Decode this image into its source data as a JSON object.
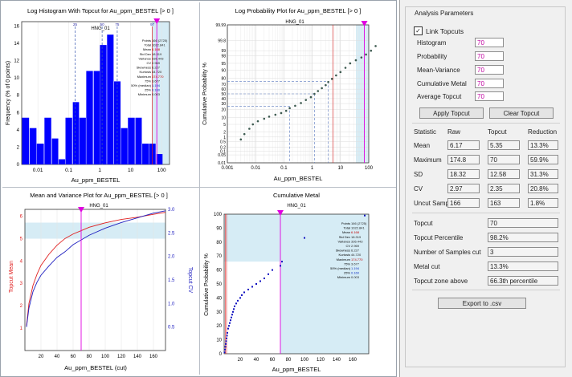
{
  "panels": {
    "hist": {
      "title": "Log Histogram With Topcut for Au_ppm_BESTEL [> 0 ]",
      "subtitle": "HNG_01",
      "xlabel": "Au_ppm_BESTEL",
      "ylabel": "Frequency (% of 0 points)",
      "yticks": [
        "0",
        "2",
        "4",
        "6",
        "8",
        "10",
        "12",
        "14",
        "16"
      ],
      "xticks": [
        "0.01",
        "0.1",
        "1",
        "10",
        "100"
      ],
      "pct_labels": [
        "25",
        "50",
        "75",
        "97"
      ],
      "stats": [
        {
          "k": "Points",
          "v": "166 (2725)"
        },
        {
          "k": "Total",
          "v": "1022.841"
        },
        {
          "k": "Mean",
          "v": "6.168"
        },
        {
          "k": "Std Dev",
          "v": "18.319"
        },
        {
          "k": "Variance",
          "v": "336.443"
        },
        {
          "k": "CV",
          "v": "2.969"
        },
        {
          "k": "Skewness",
          "v": "6.227"
        },
        {
          "k": "Kurtosis",
          "v": "44.720"
        },
        {
          "k": "Maximum",
          "v": "174.770"
        },
        {
          "k": "75%",
          "v": "3.677"
        },
        {
          "k": "50% (median)",
          "v": "1.194"
        },
        {
          "k": "25%",
          "v": "0.160"
        },
        {
          "k": "Minimum",
          "v": "0.003"
        }
      ]
    },
    "prob": {
      "title": "Log Probability Plot for Au_ppm_BESTEL [> 0 ]",
      "subtitle": "HNG_01",
      "xlabel": "Au_ppm_BESTEL",
      "ylabel": "Cumulative Probability %",
      "yticks": [
        "0.01",
        "0.05",
        "0.1",
        "0.2",
        "0.5",
        "1",
        "2",
        "5",
        "10",
        "20",
        "30",
        "40",
        "50",
        "60",
        "70",
        "80",
        "90",
        "95",
        "98",
        "99",
        "99.8",
        "99.99"
      ],
      "xticks": [
        "0.001",
        "0.01",
        "0.1",
        "1",
        "10",
        "100"
      ]
    },
    "mv": {
      "title": "Mean and Variance Plot for Au_ppm_BESTEL [> 0 ]",
      "subtitle": "HNG_01",
      "xlabel": "Au_ppm_BESTEL (cut)",
      "ylabel_left": "Topcut Mean",
      "ylabel_right": "Topcut CV",
      "yticks_left": [
        "1",
        "2",
        "3",
        "4",
        "5",
        "6"
      ],
      "yticks_right": [
        "0.5",
        "1.0",
        "1.5",
        "2.0",
        "2.5",
        "3.0"
      ],
      "xticks": [
        "20",
        "40",
        "60",
        "80",
        "100",
        "120",
        "140",
        "160"
      ]
    },
    "cum": {
      "title": "Cumulative Metal",
      "subtitle": "HNG_01",
      "xlabel": "Au_ppm_BESTEL",
      "ylabel": "Cumulative Probability %",
      "yticks": [
        "0",
        "10",
        "20",
        "30",
        "40",
        "50",
        "60",
        "70",
        "80",
        "90",
        "100"
      ],
      "xticks": [
        "20",
        "40",
        "60",
        "80",
        "100",
        "120",
        "140",
        "160"
      ]
    }
  },
  "colors": {
    "topcut": "#e000e0",
    "bars": "#0000ff",
    "red": "#e02020",
    "shade": "#d6ecf5"
  },
  "analysis": {
    "group_title": "Analysis Parameters",
    "link_topcuts": "Link Topcuts",
    "link_checked": "✓",
    "params": [
      {
        "label": "Histogram",
        "value": "70"
      },
      {
        "label": "Probability",
        "value": "70"
      },
      {
        "label": "Mean-Variance",
        "value": "70"
      },
      {
        "label": "Cumulative Metal",
        "value": "70"
      },
      {
        "label": "Average Topcut",
        "value": "70"
      }
    ],
    "apply_button": "Apply Topcut",
    "clear_button": "Clear Topcut",
    "headers": [
      "Statistic",
      "Raw",
      "Topcut",
      "Reduction"
    ],
    "rows": [
      {
        "label": "Mean",
        "raw": "6.17",
        "topcut": "5.35",
        "reduction": "13.3%"
      },
      {
        "label": "Maximum",
        "raw": "174.8",
        "topcut": "70",
        "reduction": "59.9%"
      },
      {
        "label": "SD",
        "raw": "18.32",
        "topcut": "12.58",
        "reduction": "31.3%"
      },
      {
        "label": "CV",
        "raw": "2.97",
        "topcut": "2.35",
        "reduction": "20.8%"
      },
      {
        "label": "Uncut Samples",
        "raw": "166",
        "topcut": "163",
        "reduction": "1.8%"
      }
    ],
    "singles": [
      {
        "label": "Topcut",
        "value": "70"
      },
      {
        "label": "Topcut Percentile",
        "value": "98.2%"
      },
      {
        "label": "Number of Samples cut",
        "value": "3"
      },
      {
        "label": "Metal cut",
        "value": "13.3%"
      },
      {
        "label": "Topcut zone above",
        "value": "66.3th percentile"
      }
    ],
    "export_button": "Export to .csv"
  },
  "chart_data": [
    {
      "type": "bar",
      "title": "Log Histogram With Topcut for Au_ppm_BESTEL [> 0 ]",
      "xlabel": "Au_ppm_BESTEL",
      "ylabel": "Frequency (% of 0 points)",
      "x_scale": "log",
      "xlim": [
        0.003,
        180
      ],
      "ylim": [
        0,
        16.5
      ],
      "bin_centers": [
        0.004,
        0.007,
        0.012,
        0.021,
        0.036,
        0.06,
        0.1,
        0.17,
        0.28,
        0.47,
        0.8,
        1.3,
        2.2,
        3.7,
        6.2,
        10.5,
        18,
        30,
        50,
        85,
        140
      ],
      "values": [
        5.4,
        4.2,
        2.4,
        5.4,
        3.0,
        0.6,
        5.4,
        7.2,
        5.4,
        10.8,
        10.8,
        13.8,
        15.0,
        9.6,
        4.2,
        5.4,
        5.4,
        2.4,
        2.4,
        1.2,
        0
      ],
      "topcut": 70,
      "percentiles": {
        "25": 0.16,
        "50": 1.194,
        "75": 3.677,
        "97": 50
      }
    },
    {
      "type": "scatter",
      "title": "Log Probability Plot for Au_ppm_BESTEL [> 0 ]",
      "xlabel": "Au_ppm_BESTEL",
      "ylabel": "Cumulative Probability %",
      "x_scale": "log",
      "xlim": [
        0.001,
        100
      ],
      "x": [
        0.003,
        0.004,
        0.006,
        0.008,
        0.012,
        0.02,
        0.03,
        0.05,
        0.08,
        0.12,
        0.16,
        0.25,
        0.4,
        0.6,
        0.9,
        1.2,
        1.6,
        2.2,
        3.0,
        3.7,
        5,
        7,
        10,
        15,
        22,
        35,
        55,
        80,
        120,
        175
      ],
      "y": [
        0.7,
        1.5,
        3,
        5,
        7,
        9,
        11,
        13,
        15,
        18,
        22,
        26,
        31,
        37,
        43,
        50,
        56,
        62,
        68,
        74,
        79,
        84,
        88,
        92,
        95,
        96.5,
        97.5,
        98.3,
        99,
        99.5
      ],
      "topcut": 70
    },
    {
      "type": "line",
      "title": "Mean and Variance Plot for Au_ppm_BESTEL [> 0 ]",
      "xlabel": "Au_ppm_BESTEL (cut)",
      "xlim": [
        0,
        175
      ],
      "series": [
        {
          "name": "Topcut Mean",
          "x": [
            2,
            5,
            10,
            15,
            20,
            30,
            40,
            50,
            60,
            70,
            80,
            100,
            120,
            140,
            160,
            175
          ],
          "values": [
            1.1,
            2.1,
            2.9,
            3.4,
            3.8,
            4.3,
            4.7,
            5.0,
            5.2,
            5.35,
            5.5,
            5.7,
            5.85,
            5.95,
            6.08,
            6.17
          ],
          "ylim": [
            0,
            6.3
          ]
        },
        {
          "name": "Topcut CV",
          "x": [
            2,
            5,
            10,
            15,
            20,
            30,
            40,
            50,
            60,
            70,
            80,
            100,
            120,
            140,
            160,
            175
          ],
          "values": [
            0.5,
            0.9,
            1.25,
            1.45,
            1.6,
            1.8,
            1.98,
            2.1,
            2.25,
            2.35,
            2.45,
            2.6,
            2.72,
            2.82,
            2.92,
            2.97
          ],
          "ylim": [
            0,
            3.0
          ]
        }
      ],
      "topcut": 70
    },
    {
      "type": "scatter",
      "title": "Cumulative Metal",
      "xlabel": "Au_ppm_BESTEL",
      "ylabel": "Cumulative Probability %",
      "xlim": [
        0,
        180
      ],
      "ylim": [
        0,
        100
      ],
      "x": [
        0.5,
        1,
        1.5,
        2,
        2.5,
        3,
        3.5,
        4,
        5,
        6,
        7,
        8,
        9,
        10,
        11,
        12,
        13,
        15,
        17,
        20,
        22,
        25,
        30,
        35,
        40,
        45,
        50,
        55,
        60,
        70,
        72,
        100,
        175
      ],
      "y": [
        1,
        3,
        5,
        7,
        9,
        11,
        13,
        15,
        18,
        20,
        22,
        24,
        26,
        28,
        30,
        32,
        34,
        36,
        38,
        40,
        42,
        44,
        46,
        48,
        50,
        52,
        54,
        57,
        60,
        63,
        66,
        83,
        99
      ],
      "topcut": 70
    }
  ]
}
